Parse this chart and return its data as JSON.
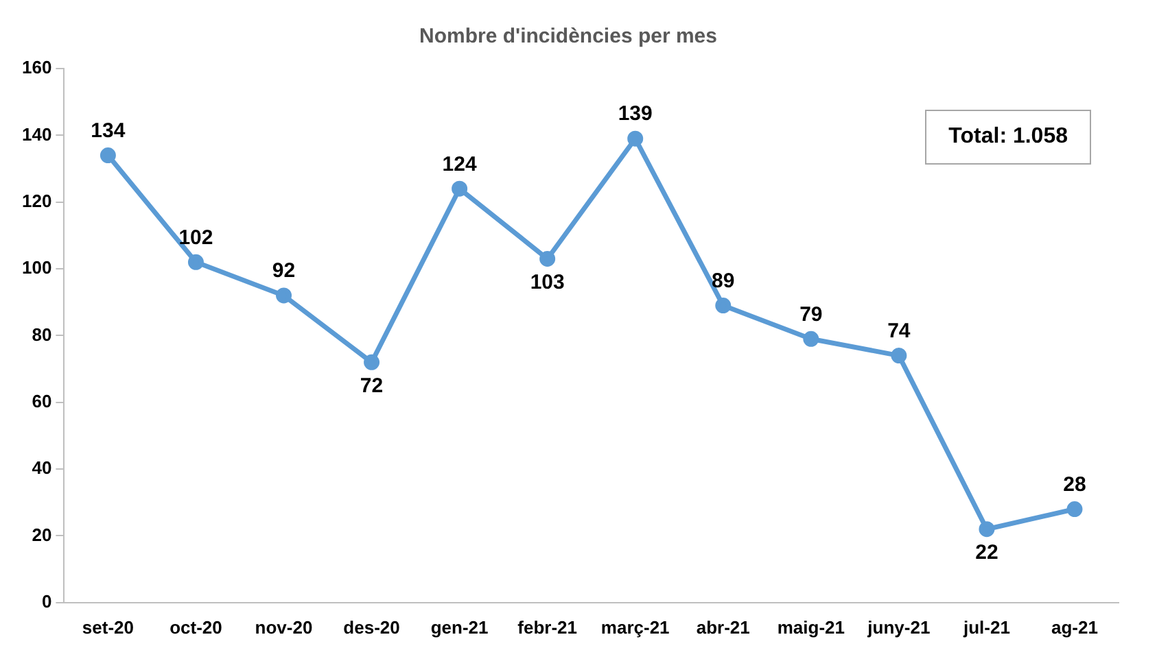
{
  "chart_data": {
    "type": "line",
    "title": "Nombre d'incidències per mes",
    "categories": [
      "set-20",
      "oct-20",
      "nov-20",
      "des-20",
      "gen-21",
      "febr-21",
      "març-21",
      "abr-21",
      "maig-21",
      "juny-21",
      "jul-21",
      "ag-21"
    ],
    "series": [
      {
        "color": "#5b9bd5",
        "values": [
          134,
          102,
          92,
          72,
          124,
          103,
          139,
          89,
          79,
          74,
          22,
          28
        ]
      }
    ],
    "ylim": [
      0,
      160
    ],
    "yticks": [
      0,
      20,
      40,
      60,
      80,
      100,
      120,
      140,
      160
    ],
    "grid": false,
    "legend": false,
    "marker": "circle",
    "line_style": "solid",
    "data_labels": true,
    "annotations": [
      "Total: 1.058"
    ]
  }
}
